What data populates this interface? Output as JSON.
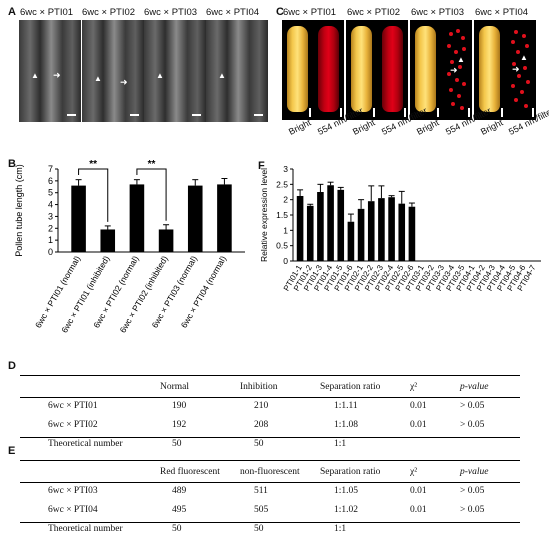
{
  "panel_labels": {
    "A": "A",
    "B": "B",
    "C": "C",
    "D": "D",
    "E": "E",
    "F": "F"
  },
  "panel_a": {
    "titles": [
      "6wc × PTI01",
      "6wc × PTI02",
      "6wc × PTI03",
      "6wc × PTI04"
    ]
  },
  "panel_c": {
    "titles": [
      "6wc × PTI01",
      "6wc × PTI02",
      "6wc × PTI03",
      "6wc × PTI04"
    ],
    "labels": [
      "Bright",
      "554 nm/filter",
      "Bright",
      "554 nm/filter",
      "Bright",
      "554 nm/filter",
      "Bright",
      "554 nm/filter"
    ]
  },
  "chart_b": {
    "type": "bar",
    "ylabel": "Pollen tube length (cm)",
    "ylim": [
      0,
      7
    ],
    "yticks": [
      "0",
      "1",
      "2",
      "3",
      "4",
      "5",
      "6",
      "7"
    ],
    "categories": [
      "6wc × PTI01 (normal)",
      "6wc × PTI01 (inhibited)",
      "6wc × PTI02 (normal)",
      "6wc × PTI02 (inhibited)",
      "6wc × PTI03 (normal)",
      "6wc × PTI04 (normal)"
    ],
    "values": [
      5.6,
      1.9,
      5.7,
      1.9,
      5.6,
      5.7
    ],
    "errors": [
      0.5,
      0.3,
      0.4,
      0.4,
      0.5,
      0.5
    ],
    "significance": [
      "**",
      "**"
    ]
  },
  "chart_f": {
    "type": "bar",
    "ylabel": "Relative expression level",
    "ylim": [
      0,
      3
    ],
    "yticks": [
      "0",
      "0.5",
      "1",
      "1.5",
      "2",
      "2.5",
      "3"
    ],
    "categories": [
      "PTI01-1",
      "PTI01-2",
      "PTI01-3",
      "PTI01-4",
      "PTI01-5",
      "PTI01-6",
      "PTI02-1",
      "PTI02-2",
      "PTI02-3",
      "PTI02-4",
      "PTI02-5",
      "PTI02-6",
      "PTI03-1",
      "PTI03-2",
      "PTI03-3",
      "PTI03-4",
      "PTI03-5",
      "PTI04-1",
      "PTI04-2",
      "PTI04-3",
      "PTI04-4",
      "PTI04-5",
      "PTI04-6",
      "PTI04-7"
    ],
    "values": [
      2.12,
      1.8,
      2.25,
      2.47,
      2.32,
      1.28,
      1.7,
      1.95,
      2.05,
      2.08,
      1.87,
      1.77,
      0,
      0,
      0,
      0,
      0,
      0,
      0,
      0,
      0,
      0,
      0,
      0
    ],
    "errors": [
      0.2,
      0.05,
      0.25,
      0.1,
      0.08,
      0.25,
      0.3,
      0.5,
      0.4,
      0.05,
      0.4,
      0.12,
      0,
      0,
      0,
      0,
      0,
      0,
      0,
      0,
      0,
      0,
      0,
      0
    ]
  },
  "table_d": {
    "headers": [
      "",
      "Normal",
      "Inhibition",
      "Separation ratio",
      "χ²",
      "p-value"
    ],
    "rows": [
      [
        "6wc × PTI01",
        "190",
        "210",
        "1:1.11",
        "0.01",
        "> 0.05"
      ],
      [
        "6wc × PTI02",
        "192",
        "208",
        "1:1.08",
        "0.01",
        "> 0.05"
      ],
      [
        "Theoretical number",
        "50",
        "50",
        "1:1",
        "",
        ""
      ]
    ]
  },
  "table_e": {
    "headers": [
      "",
      "Red fluorescent",
      "non-fluorescent",
      "Separation ratio",
      "χ²",
      "p-value"
    ],
    "rows": [
      [
        "6wc × PTI03",
        "489",
        "511",
        "1:1.05",
        "0.01",
        "> 0.05"
      ],
      [
        "6wc × PTI04",
        "495",
        "505",
        "1:1.02",
        "0.01",
        "> 0.05"
      ],
      [
        "Theoretical number",
        "50",
        "50",
        "1:1",
        "",
        ""
      ]
    ]
  }
}
